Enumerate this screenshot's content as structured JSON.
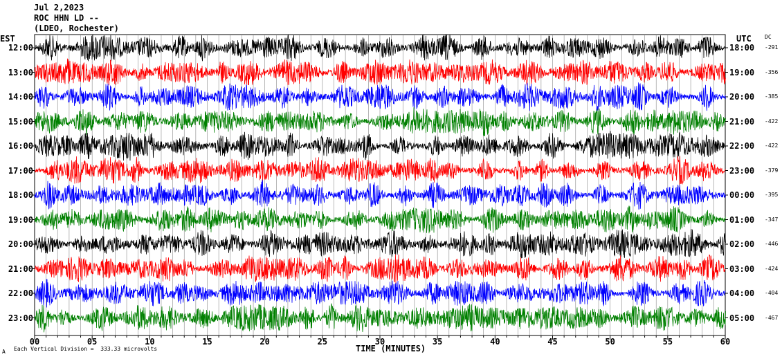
{
  "header": {
    "line1": "Jul 2,2023",
    "line2": "ROC HHN LD --",
    "line3": "(LDEO, Rochester)"
  },
  "left_tz": "EST",
  "right_tz": "UTC",
  "dc_label": "DC",
  "xlabel": "TIME (MINUTES)",
  "footer": {
    "mark": "A",
    "scale_text": "Each Vertical Division =  333.33 microvolts"
  },
  "chart_data": {
    "type": "line",
    "xlim": [
      0,
      60
    ],
    "x_ticks": [
      "00",
      "05",
      "10",
      "15",
      "20",
      "25",
      "30",
      "35",
      "40",
      "45",
      "50",
      "55",
      "60"
    ],
    "traces": [
      {
        "est": "12:00",
        "utc": "18:00",
        "dc": "-291",
        "color": "#000000"
      },
      {
        "est": "13:00",
        "utc": "19:00",
        "dc": "-356",
        "color": "#ff0000"
      },
      {
        "est": "14:00",
        "utc": "20:00",
        "dc": "-385",
        "color": "#0000ff"
      },
      {
        "est": "15:00",
        "utc": "21:00",
        "dc": "-422",
        "color": "#008000"
      },
      {
        "est": "16:00",
        "utc": "22:00",
        "dc": "-422",
        "color": "#000000"
      },
      {
        "est": "17:00",
        "utc": "23:00",
        "dc": "-379",
        "color": "#ff0000"
      },
      {
        "est": "18:00",
        "utc": "00:00",
        "dc": "-395",
        "color": "#0000ff"
      },
      {
        "est": "19:00",
        "utc": "01:00",
        "dc": "-347",
        "color": "#008000"
      },
      {
        "est": "20:00",
        "utc": "02:00",
        "dc": "-446",
        "color": "#000000"
      },
      {
        "est": "21:00",
        "utc": "03:00",
        "dc": "-424",
        "color": "#ff0000"
      },
      {
        "est": "22:00",
        "utc": "04:00",
        "dc": "-404",
        "color": "#0000ff"
      },
      {
        "est": "23:00",
        "utc": "05:00",
        "dc": "-467",
        "color": "#008000"
      }
    ]
  }
}
